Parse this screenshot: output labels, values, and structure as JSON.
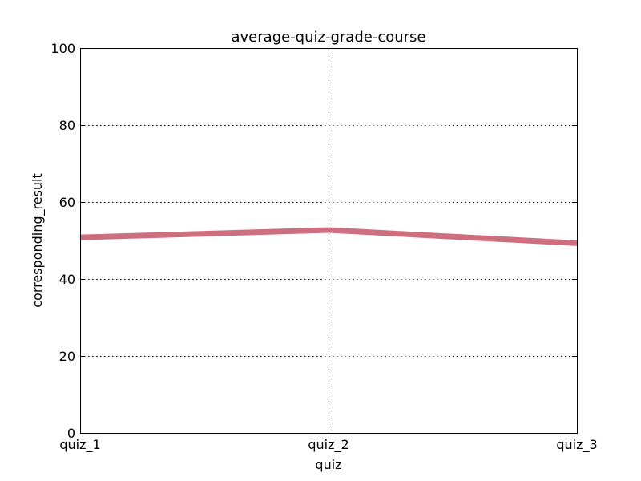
{
  "chart_data": {
    "type": "line",
    "title": "average-quiz-grade-course",
    "xlabel": "quiz",
    "ylabel": "corresponding_result",
    "categories": [
      "quiz_1",
      "quiz_2",
      "quiz_3"
    ],
    "series": [
      {
        "values": [
          50.8,
          52.7,
          49.3
        ],
        "color": "#cd6f7f"
      }
    ],
    "ylim": [
      0,
      100
    ],
    "yticks": [
      0,
      20,
      40,
      60,
      80,
      100
    ],
    "grid": true
  }
}
